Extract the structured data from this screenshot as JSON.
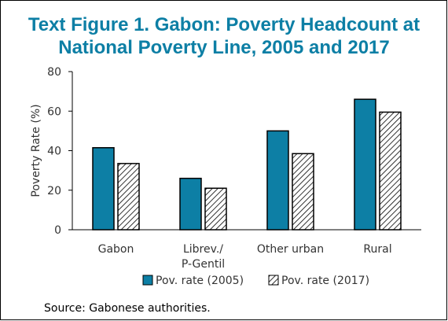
{
  "title_line1": "Text Figure 1. Gabon: Poverty Headcount at",
  "title_line2": "National Poverty Line, 2005 and 2017",
  "source": "Source: Gabonese authorities.",
  "colors": {
    "title": "#0d7fa5",
    "series_2005": "#0d7fa5",
    "series_2017_hatch": "#000000"
  },
  "chart_data": {
    "type": "bar",
    "categories": [
      [
        "Gabon"
      ],
      [
        "Librev./",
        "P-Gentil"
      ],
      [
        "Other urban"
      ],
      [
        "Rural"
      ]
    ],
    "series": [
      {
        "name": "Pov. rate (2005)",
        "values": [
          41.5,
          26,
          50,
          66
        ]
      },
      {
        "name": "Pov. rate (2017)",
        "values": [
          33.5,
          21,
          38.5,
          59.5
        ]
      }
    ],
    "ylabel": "Poverty Rate (%)",
    "ylim": [
      0,
      80
    ],
    "yticks": [
      0,
      20,
      40,
      60,
      80
    ],
    "grid": false,
    "legend_position": "bottom"
  }
}
